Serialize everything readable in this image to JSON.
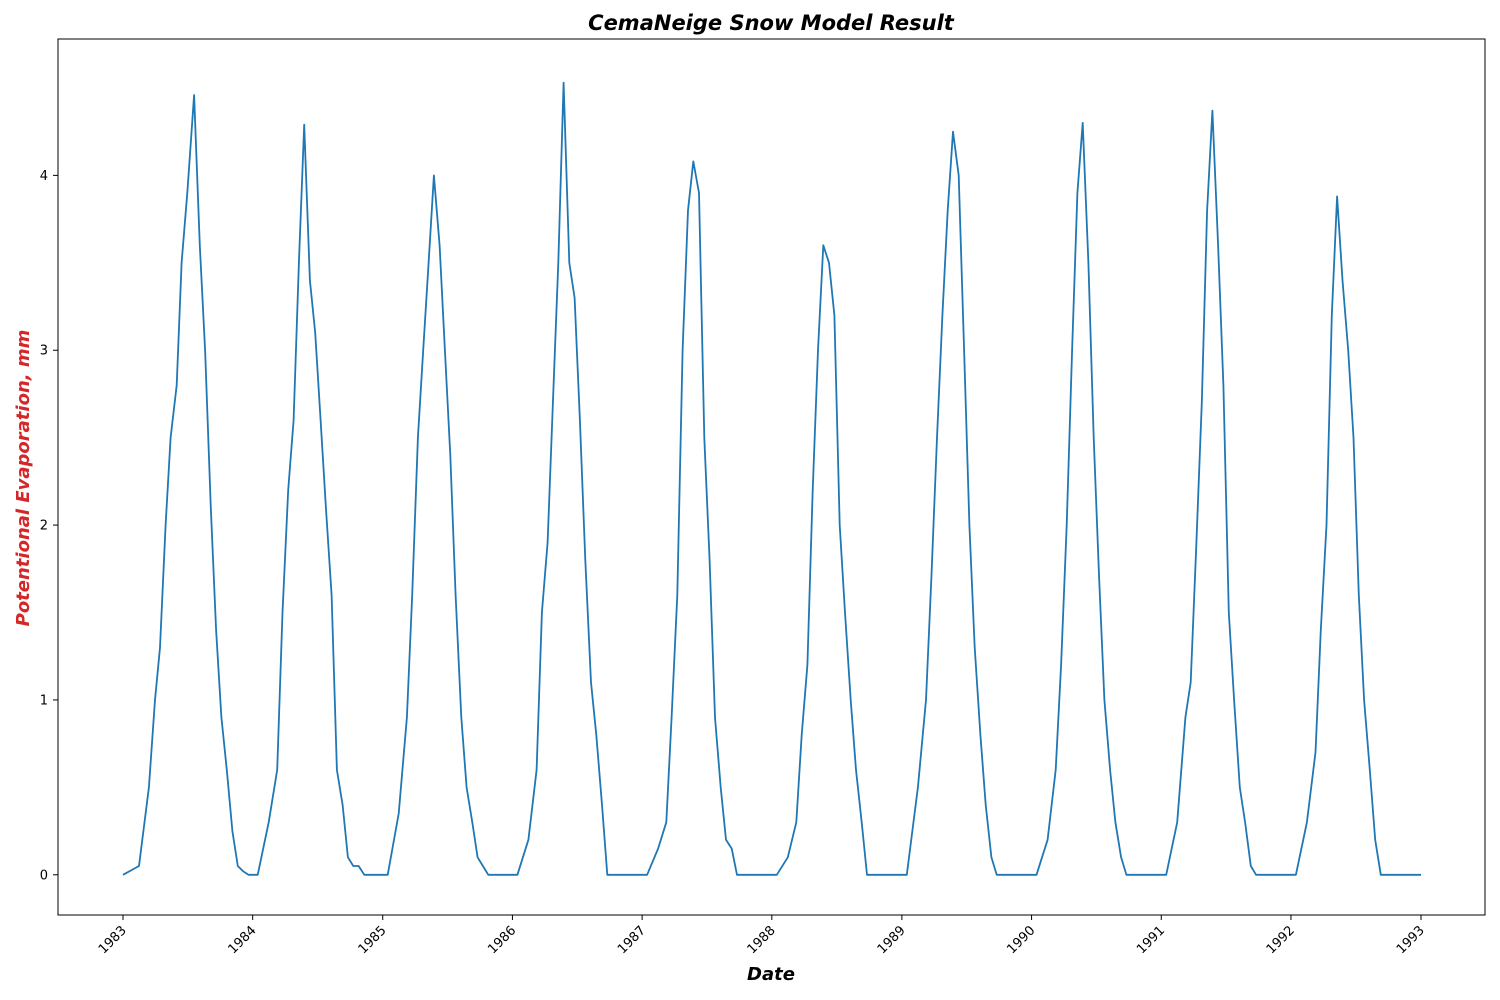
{
  "chart_data": {
    "type": "line",
    "title": "CemaNeige Snow Model Result",
    "xlabel": "Date",
    "ylabel": "Potentional Evaporation, mm",
    "x_range": [
      "1983-01-01",
      "1993-01-01"
    ],
    "ylim": [
      -0.23,
      4.78
    ],
    "x_ticks": [
      "1983",
      "1984",
      "1985",
      "1986",
      "1987",
      "1988",
      "1989",
      "1990",
      "1991",
      "1992",
      "1993"
    ],
    "y_ticks": [
      "0",
      "1",
      "2",
      "3",
      "4"
    ],
    "grid": false,
    "legend": "none",
    "colors": {
      "line": "#1f77b4",
      "ylabel": "#d62728",
      "axes": "#000000"
    },
    "series": [
      {
        "x": [
          "1983-01-01",
          "1983-02-15",
          "1983-03-15",
          "1983-04-01",
          "1983-04-15",
          "1983-05-01",
          "1983-05-15",
          "1983-06-01",
          "1983-06-15",
          "1983-07-01",
          "1983-07-20",
          "1983-08-05",
          "1983-08-20",
          "1983-09-05",
          "1983-09-20",
          "1983-10-05",
          "1983-10-20",
          "1983-11-05",
          "1983-11-20",
          "1983-12-05",
          "1983-12-20",
          "1984-01-15",
          "1984-02-15",
          "1984-03-10",
          "1984-03-25",
          "1984-04-10",
          "1984-04-25",
          "1984-05-10",
          "1984-05-25",
          "1984-06-10",
          "1984-06-25",
          "1984-07-10",
          "1984-07-25",
          "1984-08-10",
          "1984-08-25",
          "1984-09-10",
          "1984-09-25",
          "1984-10-10",
          "1984-10-25",
          "1984-11-10",
          "1984-11-25",
          "1984-12-20",
          "1985-01-15",
          "1985-02-15",
          "1985-03-10",
          "1985-03-25",
          "1985-04-10",
          "1985-04-25",
          "1985-05-10",
          "1985-05-25",
          "1985-06-10",
          "1985-06-25",
          "1985-07-10",
          "1985-07-25",
          "1985-08-10",
          "1985-08-25",
          "1985-09-10",
          "1985-09-25",
          "1985-10-10",
          "1985-10-25",
          "1985-11-10",
          "1985-11-25",
          "1985-12-20",
          "1986-01-15",
          "1986-02-15",
          "1986-03-10",
          "1986-03-25",
          "1986-04-10",
          "1986-04-25",
          "1986-05-10",
          "1986-05-25",
          "1986-06-10",
          "1986-06-25",
          "1986-07-10",
          "1986-07-25",
          "1986-08-10",
          "1986-08-25",
          "1986-09-10",
          "1986-09-25",
          "1986-10-10",
          "1986-10-25",
          "1986-11-10",
          "1986-11-25",
          "1986-12-20",
          "1987-01-15",
          "1987-02-15",
          "1987-03-10",
          "1987-03-25",
          "1987-04-10",
          "1987-04-25",
          "1987-05-10",
          "1987-05-25",
          "1987-06-10",
          "1987-06-25",
          "1987-07-10",
          "1987-07-25",
          "1987-08-10",
          "1987-08-25",
          "1987-09-10",
          "1987-09-25",
          "1987-10-10",
          "1987-10-25",
          "1987-11-10",
          "1987-11-25",
          "1987-12-20",
          "1988-01-15",
          "1988-02-15",
          "1988-03-10",
          "1988-03-25",
          "1988-04-10",
          "1988-04-25",
          "1988-05-10",
          "1988-05-25",
          "1988-06-10",
          "1988-06-25",
          "1988-07-10",
          "1988-07-25",
          "1988-08-10",
          "1988-08-25",
          "1988-09-10",
          "1988-09-25",
          "1988-10-10",
          "1988-10-25",
          "1988-11-10",
          "1988-11-25",
          "1988-12-20",
          "1989-01-15",
          "1989-02-15",
          "1989-03-10",
          "1989-03-25",
          "1989-04-10",
          "1989-04-25",
          "1989-05-10",
          "1989-05-25",
          "1989-06-10",
          "1989-06-25",
          "1989-07-10",
          "1989-07-25",
          "1989-08-10",
          "1989-08-25",
          "1989-09-10",
          "1989-09-25",
          "1989-10-10",
          "1989-10-25",
          "1989-11-10",
          "1989-11-25",
          "1989-12-20",
          "1990-01-15",
          "1990-02-15",
          "1990-03-10",
          "1990-03-25",
          "1990-04-10",
          "1990-04-25",
          "1990-05-10",
          "1990-05-25",
          "1990-06-10",
          "1990-06-25",
          "1990-07-10",
          "1990-07-25",
          "1990-08-10",
          "1990-08-25",
          "1990-09-10",
          "1990-09-25",
          "1990-10-10",
          "1990-10-25",
          "1990-11-10",
          "1990-11-25",
          "1990-12-20",
          "1991-01-15",
          "1991-02-15",
          "1991-03-10",
          "1991-03-25",
          "1991-04-10",
          "1991-04-25",
          "1991-05-10",
          "1991-05-25",
          "1991-06-10",
          "1991-06-25",
          "1991-07-10",
          "1991-07-25",
          "1991-08-10",
          "1991-08-25",
          "1991-09-10",
          "1991-09-25",
          "1991-10-10",
          "1991-10-25",
          "1991-11-10",
          "1991-11-25",
          "1991-12-20",
          "1992-01-15",
          "1992-02-15",
          "1992-03-10",
          "1992-03-25",
          "1992-04-10",
          "1992-04-25",
          "1992-05-10",
          "1992-05-25",
          "1992-06-10",
          "1992-06-25",
          "1992-07-10",
          "1992-07-25",
          "1992-08-10",
          "1992-08-25",
          "1992-09-10",
          "1992-09-25",
          "1992-10-10",
          "1992-10-25",
          "1992-11-10",
          "1992-11-25",
          "1992-12-15",
          "1993-01-01"
        ],
        "y": [
          0.0,
          0.05,
          0.5,
          1.0,
          1.3,
          2.0,
          2.5,
          2.8,
          3.5,
          3.9,
          4.46,
          3.6,
          3.0,
          2.1,
          1.4,
          0.9,
          0.6,
          0.25,
          0.05,
          0.02,
          0.0,
          0.0,
          0.3,
          0.6,
          1.5,
          2.2,
          2.6,
          3.5,
          4.29,
          3.4,
          3.1,
          2.6,
          2.1,
          1.6,
          0.6,
          0.4,
          0.1,
          0.05,
          0.05,
          0.0,
          0.0,
          0.0,
          0.0,
          0.35,
          0.9,
          1.6,
          2.5,
          3.0,
          3.5,
          4.0,
          3.6,
          3.0,
          2.4,
          1.6,
          0.9,
          0.5,
          0.3,
          0.1,
          0.05,
          0.0,
          0.0,
          0.0,
          0.0,
          0.0,
          0.2,
          0.6,
          1.5,
          1.9,
          2.7,
          3.5,
          4.53,
          3.5,
          3.3,
          2.6,
          1.8,
          1.1,
          0.8,
          0.4,
          0.0,
          0.0,
          0.0,
          0.0,
          0.0,
          0.0,
          0.0,
          0.15,
          0.3,
          0.9,
          1.6,
          3.0,
          3.8,
          4.08,
          3.9,
          2.5,
          1.8,
          0.9,
          0.5,
          0.2,
          0.15,
          0.0,
          0.0,
          0.0,
          0.0,
          0.0,
          0.0,
          0.0,
          0.1,
          0.3,
          0.8,
          1.2,
          2.2,
          3.0,
          3.6,
          3.5,
          3.2,
          2.0,
          1.5,
          1.0,
          0.6,
          0.3,
          0.0,
          0.0,
          0.0,
          0.0,
          0.0,
          0.0,
          0.0,
          0.5,
          1.0,
          1.7,
          2.5,
          3.2,
          3.8,
          4.25,
          4.0,
          3.0,
          2.0,
          1.3,
          0.8,
          0.4,
          0.1,
          0.0,
          0.0,
          0.0,
          0.0,
          0.0,
          0.0,
          0.0,
          0.2,
          0.6,
          1.2,
          2.0,
          3.0,
          3.9,
          4.3,
          3.5,
          2.5,
          1.7,
          1.0,
          0.6,
          0.3,
          0.1,
          0.0,
          0.0,
          0.0,
          0.0,
          0.0,
          0.0,
          0.0,
          0.3,
          0.9,
          1.1,
          1.9,
          2.7,
          3.8,
          4.37,
          3.6,
          2.8,
          1.5,
          1.0,
          0.5,
          0.3,
          0.05,
          0.0,
          0.0,
          0.0,
          0.0,
          0.0,
          0.0,
          0.0,
          0.3,
          0.7,
          1.4,
          2.0,
          3.2,
          3.88,
          3.4,
          3.0,
          2.5,
          1.6,
          1.0,
          0.6,
          0.2,
          0.0,
          0.0,
          0.0,
          0.0,
          0.0,
          0.0,
          0.0,
          0.0
        ]
      }
    ]
  }
}
